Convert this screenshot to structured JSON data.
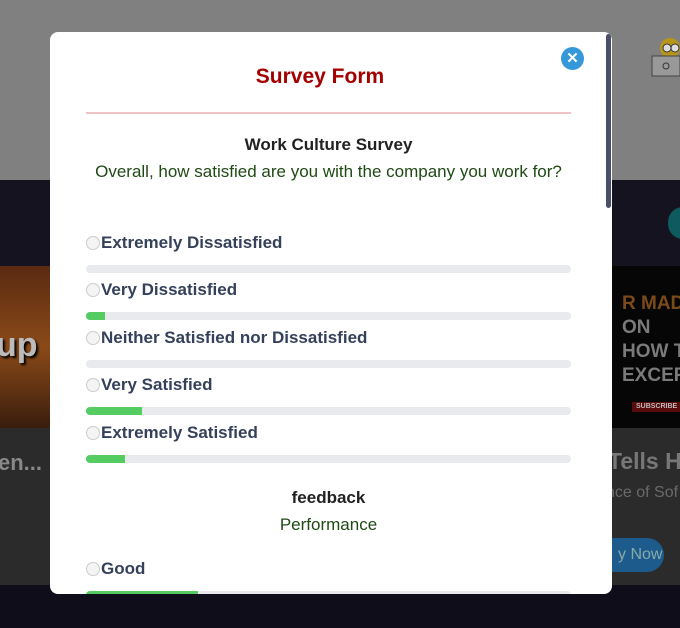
{
  "background": {
    "left_thumb_text": "up",
    "left_card_title": "en...",
    "right_thumb_lines": [
      "R MAD",
      "ON",
      "HOW T",
      "EXCER"
    ],
    "right_thumb_badge": "SUBSCRIBE",
    "right_card_title": "Tells H",
    "right_card_subtitle": "nce of Sof",
    "right_card_button": "y Now"
  },
  "modal": {
    "title": "Survey Form",
    "close_icon": "close-icon",
    "accent_color": "#a40000",
    "sections": [
      {
        "title": "Work Culture Survey",
        "question": "Overall, how satisfied are you with the company you work for?",
        "options": [
          {
            "label": "Extremely Dissatisfied",
            "percent": 0
          },
          {
            "label": "Very Dissatisfied",
            "percent": 4
          },
          {
            "label": "Neither Satisfied nor Dissatisfied",
            "percent": 0
          },
          {
            "label": "Very Satisfied",
            "percent": 11.5
          },
          {
            "label": "Extremely Satisfied",
            "percent": 8
          }
        ]
      },
      {
        "title": "feedback",
        "question": "Performance",
        "options": [
          {
            "label": "Good",
            "percent": 23
          }
        ]
      }
    ]
  }
}
